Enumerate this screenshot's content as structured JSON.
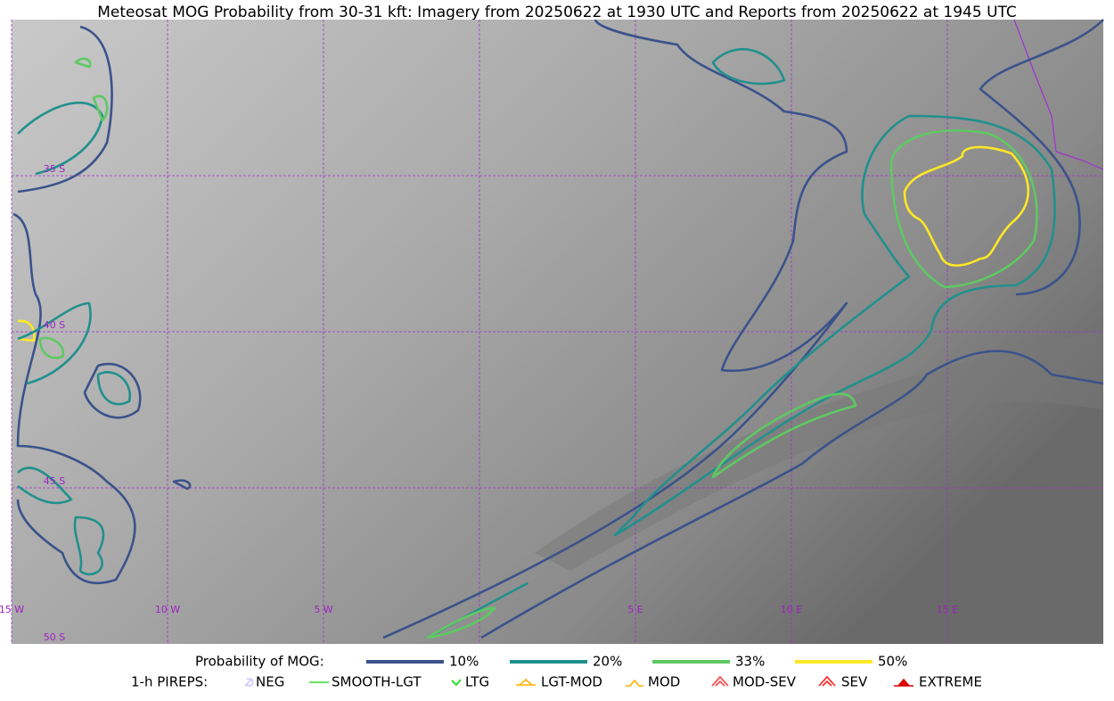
{
  "header": {
    "title": "Meteosat MOG Probability from 30-31 kft: Imagery from 20250622 at 1930 UTC and Reports from 20250622 at 1945 UTC"
  },
  "map": {
    "lon_labels": [
      "15 W",
      "10 W",
      "5 W",
      "5 E",
      "10 E",
      "15 E"
    ],
    "lat_labels": [
      "35 S",
      "40 S",
      "45 S",
      "50 S"
    ]
  },
  "legend": {
    "probability": {
      "title": "Probability of MOG:",
      "items": [
        {
          "label": "10%",
          "color": "#3b528b"
        },
        {
          "label": "20%",
          "color": "#21908d"
        },
        {
          "label": "33%",
          "color": "#5ec962"
        },
        {
          "label": "50%",
          "color": "#fde725"
        }
      ]
    },
    "pireps": {
      "title": "1-h PIREPS:",
      "items": [
        {
          "label": "NEG",
          "color": "#c8c8ff"
        },
        {
          "label": "SMOOTH-LGT",
          "color": "#33dd33"
        },
        {
          "label": "LTG",
          "color": "#00dd00"
        },
        {
          "label": "LGT-MOD",
          "color": "#ffb000"
        },
        {
          "label": "MOD",
          "color": "#ffb000"
        },
        {
          "label": "MOD-SEV",
          "color": "#ff4040"
        },
        {
          "label": "SEV",
          "color": "#ff2020"
        },
        {
          "label": "EXTREME",
          "color": "#dd0000"
        }
      ]
    }
  }
}
